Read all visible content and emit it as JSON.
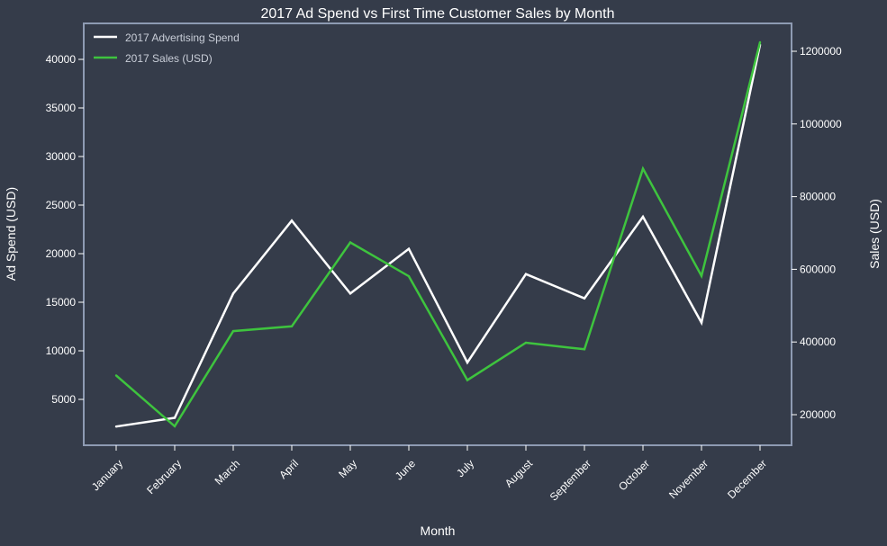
{
  "chart_data": {
    "type": "line",
    "title": "2017 Ad Spend vs First Time Customer Sales by Month",
    "xlabel": "Month",
    "ylabel_left": "Ad Spend (USD)",
    "ylabel_right": "Sales (USD)",
    "categories": [
      "January",
      "February",
      "March",
      "April",
      "May",
      "June",
      "July",
      "August",
      "September",
      "October",
      "November",
      "December"
    ],
    "left_ticks": [
      "5000",
      "10000",
      "15000",
      "20000",
      "25000",
      "30000",
      "35000",
      "40000"
    ],
    "right_ticks": [
      "200000",
      "400000",
      "600000",
      "800000",
      "1000000",
      "1200000"
    ],
    "series": [
      {
        "name": "2017 Advertising Spend",
        "axis": "left",
        "color": "#ffffff",
        "values": [
          2200,
          3100,
          15900,
          23400,
          15900,
          20500,
          8800,
          17900,
          15400,
          23800,
          12900,
          41500
        ]
      },
      {
        "name": "2017 Sales (USD)",
        "axis": "right",
        "color": "#3ec43e",
        "values": [
          308000,
          168000,
          430000,
          443000,
          674000,
          581000,
          295000,
          398000,
          380000,
          877000,
          582000,
          1225000
        ]
      }
    ],
    "legend_position": "top-left",
    "grid": false,
    "colors": {
      "background": "#353c4a",
      "frame": "#8e9bb3",
      "text": "#ffffff",
      "legend_text": "#c9ced8"
    }
  }
}
